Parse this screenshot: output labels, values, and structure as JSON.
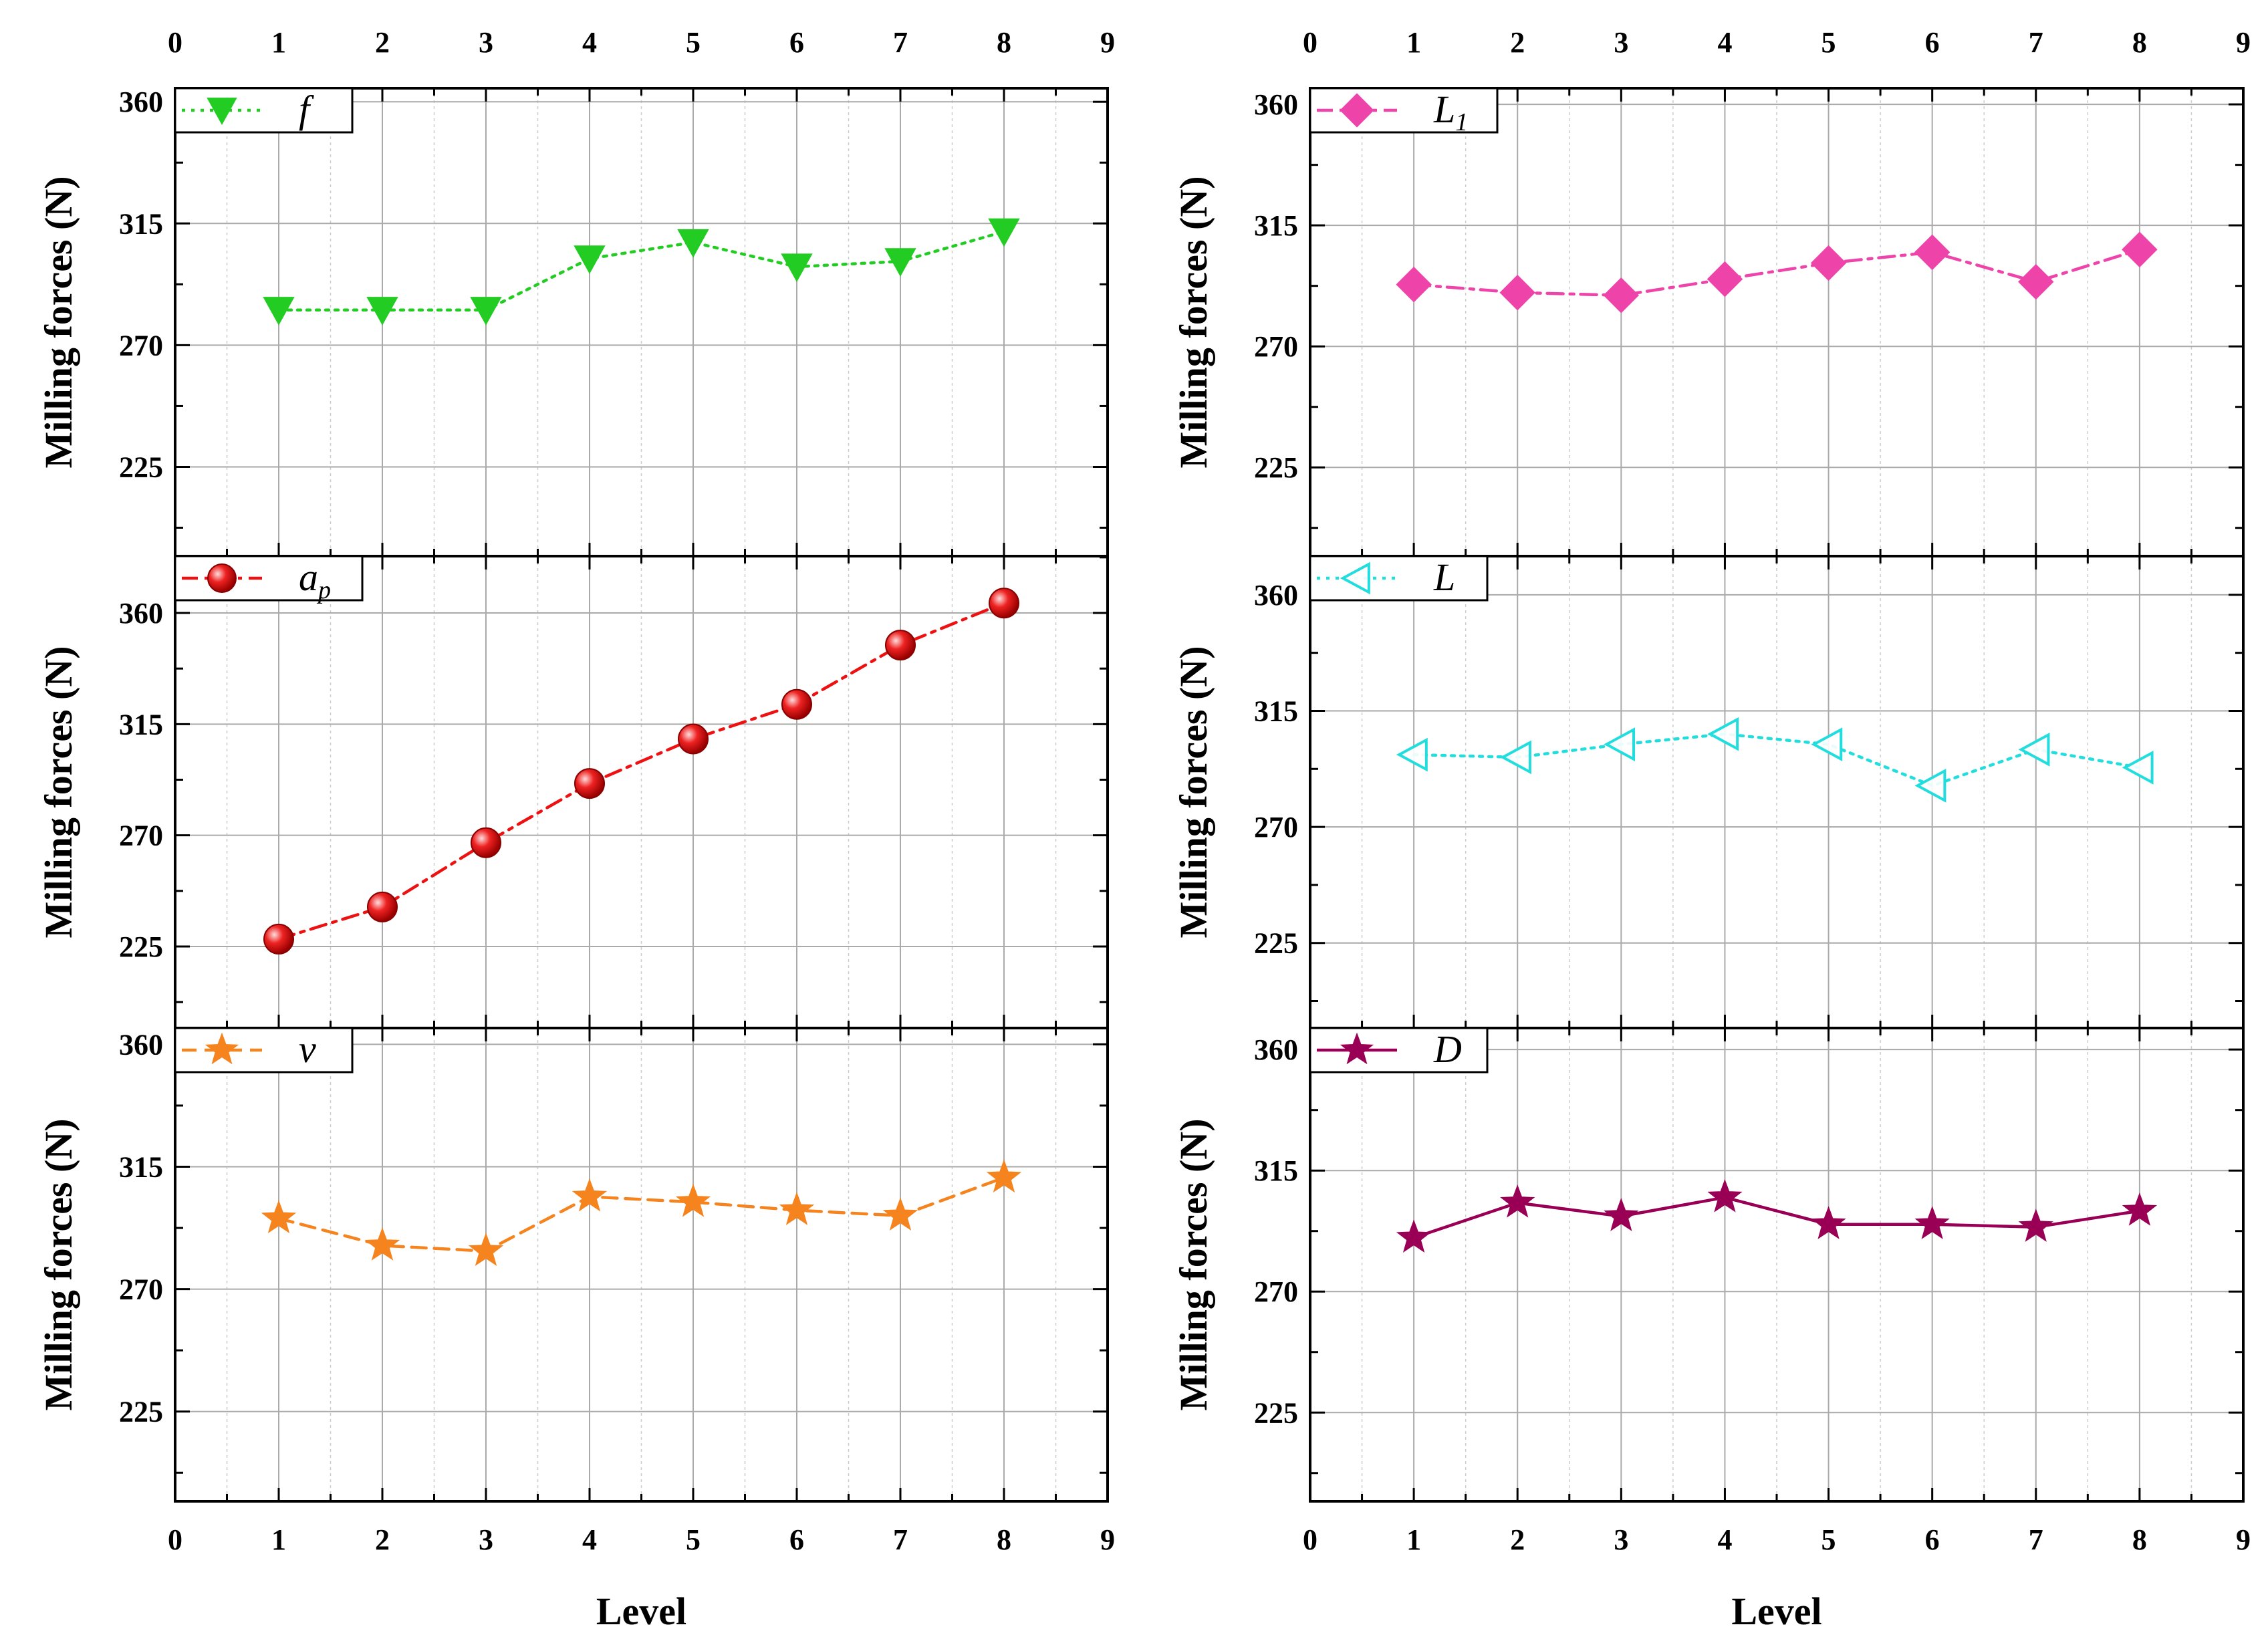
{
  "chart_data": {
    "type": "line",
    "xlabel": "Level",
    "ylabel": "Milling forces (N)",
    "xlim": [
      0,
      9
    ],
    "x_ticks": [
      "0",
      "1",
      "2",
      "3",
      "4",
      "5",
      "6",
      "7",
      "8",
      "9"
    ],
    "y_ticks": [
      "225",
      "270",
      "315",
      "360"
    ],
    "x": [
      1,
      2,
      3,
      4,
      5,
      6,
      7,
      8
    ],
    "panels": [
      {
        "column": "left",
        "legend": "f",
        "legend_sub": "",
        "color": "#22cc22",
        "marker": "triangle-down",
        "dash": "dotted",
        "ylim": [
          192,
          365
        ],
        "values": [
          283,
          283,
          283,
          302,
          308,
          299,
          301,
          312
        ]
      },
      {
        "column": "left",
        "legend": "a",
        "legend_sub": "p",
        "color": "#ee1111",
        "marker": "sphere",
        "dash": "dashdot",
        "ylim": [
          192,
          383
        ],
        "values": [
          228,
          241,
          267,
          291,
          309,
          323,
          347,
          364
        ]
      },
      {
        "column": "left",
        "legend": "v",
        "legend_sub": "",
        "color": "#f5841f",
        "marker": "star",
        "dash": "dashed",
        "ylim": [
          192,
          366
        ],
        "values": [
          296,
          286,
          284,
          304,
          302,
          299,
          297,
          311
        ]
      },
      {
        "column": "right",
        "legend": "L",
        "legend_sub": "1",
        "color": "#ee44aa",
        "marker": "diamond",
        "dash": "dashdot",
        "ylim": [
          192,
          366
        ],
        "values": [
          293,
          290,
          289,
          295,
          301,
          305,
          294,
          306
        ]
      },
      {
        "column": "right",
        "legend": "L",
        "legend_sub": "",
        "color": "#22dddd",
        "marker": "triangle-left",
        "dash": "dotted",
        "ylim": [
          192,
          375
        ],
        "values": [
          298,
          297,
          302,
          306,
          302,
          286,
          300,
          293
        ]
      },
      {
        "column": "right",
        "legend": "D",
        "legend_sub": "",
        "color": "#990055",
        "marker": "star",
        "dash": "solid",
        "ylim": [
          192,
          368
        ],
        "values": [
          290,
          303,
          298,
          305,
          295,
          295,
          294,
          300
        ]
      }
    ]
  }
}
